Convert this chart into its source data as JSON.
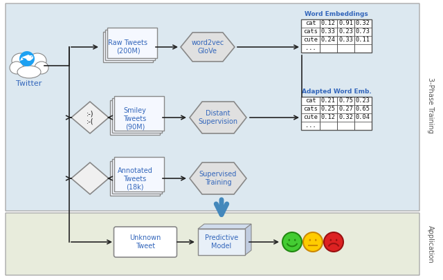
{
  "bg_training_color": "#dce8f0",
  "bg_application_color": "#e8ecdc",
  "text_color_blue": "#3366bb",
  "text_color_black": "#111111",
  "box_fill": "#f5f8ff",
  "box_edge": "#888888",
  "hex_fill": "#e0e0e0",
  "hex_edge": "#888888",
  "diamond_fill": "#f0f0f0",
  "diamond_edge": "#888888",
  "table_border": "#555555",
  "arrow_color": "#222222",
  "big_arrow_color": "#4488bb",
  "label_color": "#666666",
  "title_3phase": "3-Phase Training",
  "title_application": "Application",
  "we_title": "Word Embeddings",
  "awe_title": "Adapted Word Emb.",
  "we_rows": [
    [
      "cat",
      "0.12",
      "0.91",
      "0.32"
    ],
    [
      "cats",
      "0.33",
      "0.23",
      "0.73"
    ],
    [
      "cute",
      "0.24",
      "0.33",
      "0.11"
    ],
    [
      "...",
      "",
      "",
      ""
    ]
  ],
  "awe_rows": [
    [
      "cat",
      "0.21",
      "0.75",
      "0.23"
    ],
    [
      "cats",
      "0.25",
      "0.27",
      "0.65"
    ],
    [
      "cute",
      "0.12",
      "0.32",
      "0.04"
    ],
    [
      "...",
      "",
      "",
      ""
    ]
  ],
  "raw_tweets_label": "Raw Tweets\n(200M)",
  "smiley_tweets_label": "Smiley\nTweets\n(90M)",
  "annotated_tweets_label": "Annotated\nTweets\n(18k)",
  "word2vec_label": "word2vec\nGloVe",
  "distant_label": "Distant\nSupervision",
  "supervised_label": "Supervised\nTraining",
  "unknown_label": "Unknown\nTweet",
  "predictive_label": "Predictive\nModel",
  "smiley_diamond": ":-)\n:-(",
  "twitter_label": "Twitter"
}
